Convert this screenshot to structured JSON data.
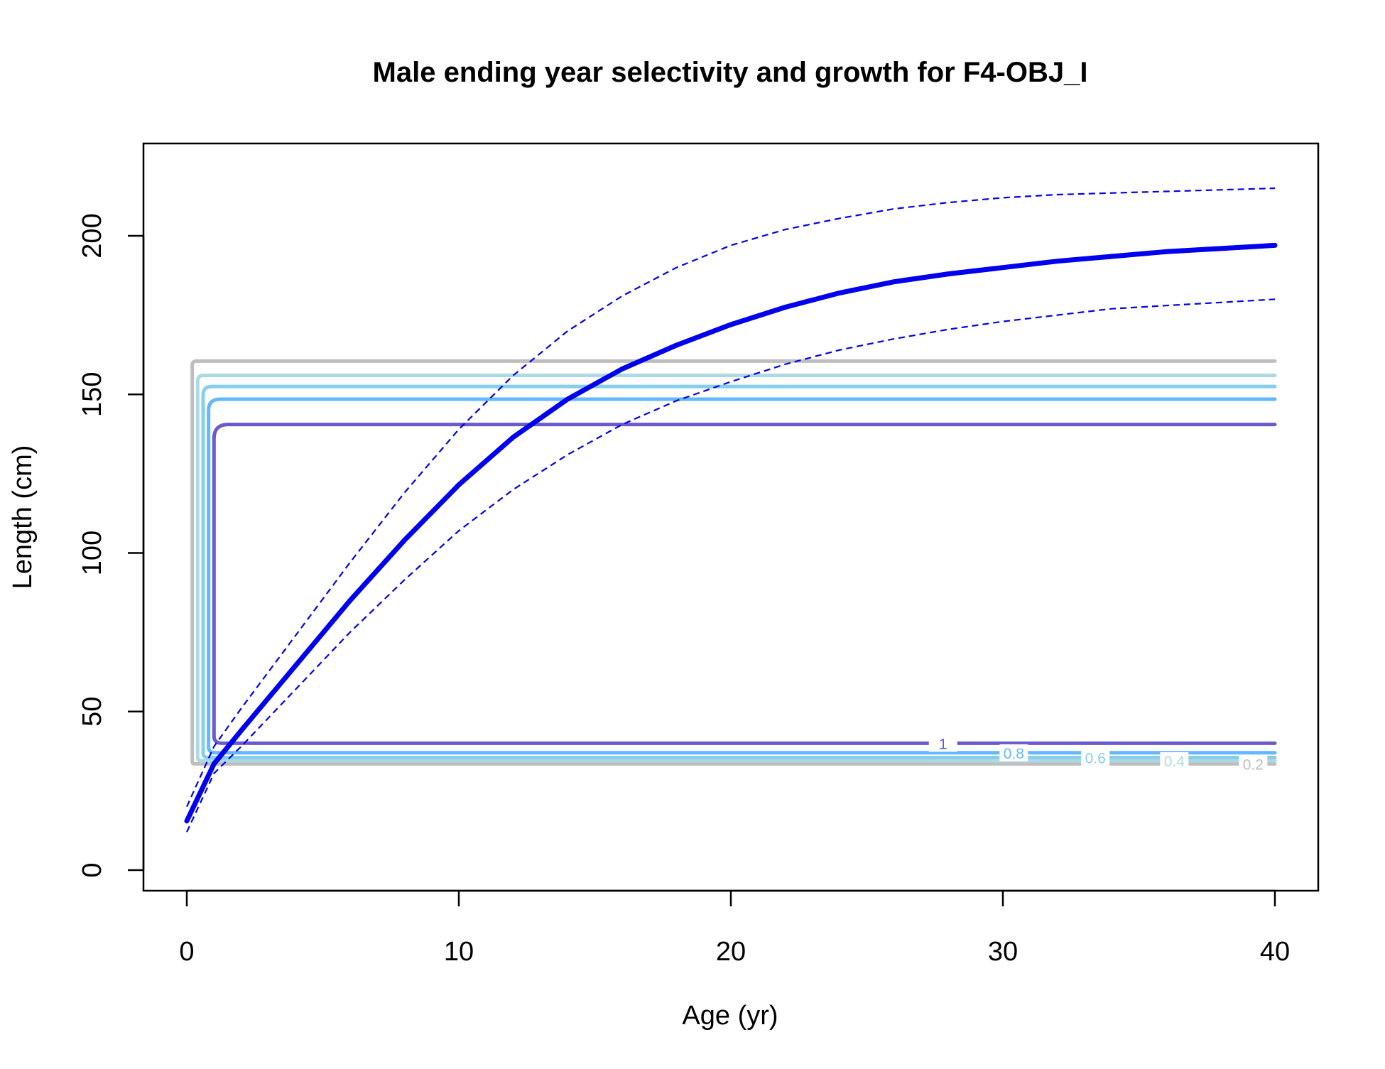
{
  "chart_data": {
    "type": "line",
    "title": "Male ending year selectivity and growth for F4-OBJ_I",
    "xlabel": "Age (yr)",
    "ylabel": "Length (cm)",
    "xlim": [
      0,
      40
    ],
    "ylim": [
      0,
      220
    ],
    "x_ticks": [
      0,
      10,
      20,
      30,
      40
    ],
    "y_ticks": [
      0,
      50,
      100,
      150,
      200
    ],
    "x_tick_labels": [
      "0",
      "10",
      "20",
      "30",
      "40"
    ],
    "y_tick_labels": [
      "0",
      "50",
      "100",
      "150",
      "200"
    ],
    "grid": false,
    "growth": {
      "color": "#0000ee",
      "x": [
        0,
        1,
        2,
        4,
        6,
        8,
        10,
        12,
        14,
        16,
        18,
        20,
        22,
        24,
        26,
        28,
        30,
        32,
        34,
        36,
        38,
        40
      ],
      "mean": [
        15.5,
        33.5,
        44,
        64.5,
        85,
        104,
        121.5,
        136.5,
        148.5,
        158,
        165.5,
        172,
        177.5,
        182,
        185.5,
        188,
        190,
        192,
        193.5,
        195,
        196,
        197
      ],
      "upper": [
        20,
        39,
        51,
        74,
        97,
        119,
        139,
        156,
        170,
        181,
        190,
        197,
        202,
        205.5,
        208.5,
        210.5,
        212,
        213,
        213.5,
        214,
        214.5,
        215
      ],
      "lower": [
        12,
        30.5,
        39,
        57,
        75,
        91.5,
        107,
        120,
        131,
        140.5,
        148,
        154,
        159.5,
        164,
        167.5,
        170.5,
        173,
        175,
        177,
        178,
        179,
        180
      ]
    },
    "selectivity_contours": [
      {
        "level": "0.2",
        "color": "#bebebe",
        "lower": 33.5,
        "upper": 160.5,
        "x_start": 0.2,
        "label_x": 39.2
      },
      {
        "level": "0.4",
        "color": "#add8e6",
        "lower": 34.5,
        "upper": 156,
        "x_start": 0.4,
        "label_x": 36.3
      },
      {
        "level": "0.6",
        "color": "#87ceeb",
        "lower": 35.5,
        "upper": 152.5,
        "x_start": 0.6,
        "label_x": 33.4
      },
      {
        "level": "0.8",
        "color": "#63b8ff",
        "lower": 37,
        "upper": 148.5,
        "x_start": 0.8,
        "label_x": 30.4
      },
      {
        "level": "1",
        "color": "#6a5acd",
        "lower": 40,
        "upper": 140.5,
        "x_start": 1.0,
        "label_x": 27.8
      }
    ]
  }
}
